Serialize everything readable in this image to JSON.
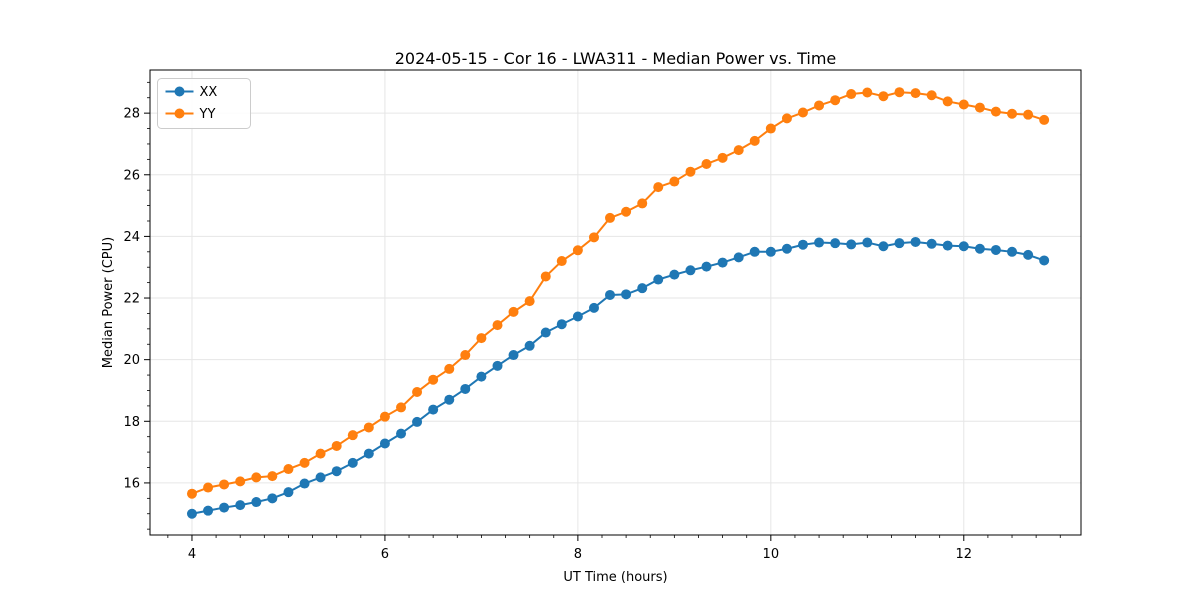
{
  "chart_data": {
    "type": "line",
    "title": "2024-05-15 - Cor 16 - LWA311 - Median Power vs. Time",
    "xlabel": "UT Time (hours)",
    "ylabel": "Median Power (CPU)",
    "grid": true,
    "legend": {
      "position": "upper left",
      "entries": [
        "XX",
        "YY"
      ]
    },
    "xlim": [
      3.565,
      13.215
    ],
    "ylim": [
      14.31,
      29.4
    ],
    "xticks": [
      4,
      6,
      8,
      10,
      12
    ],
    "yticks": [
      16,
      18,
      20,
      22,
      24,
      26,
      28
    ],
    "x_minor_step": 0.25,
    "y_minor_step": 0.5,
    "x": [
      4.0,
      4.167,
      4.333,
      4.5,
      4.667,
      4.833,
      5.0,
      5.167,
      5.333,
      5.5,
      5.667,
      5.833,
      6.0,
      6.167,
      6.333,
      6.5,
      6.667,
      6.833,
      7.0,
      7.167,
      7.333,
      7.5,
      7.667,
      7.833,
      8.0,
      8.167,
      8.333,
      8.5,
      8.667,
      8.833,
      9.0,
      9.167,
      9.333,
      9.5,
      9.667,
      9.833,
      10.0,
      10.167,
      10.333,
      10.5,
      10.667,
      10.833,
      11.0,
      11.167,
      11.333,
      11.5,
      11.667,
      11.833,
      12.0,
      12.167,
      12.333,
      12.5,
      12.667,
      12.833
    ],
    "series": [
      {
        "name": "XX",
        "color": "#1f77b4",
        "values": [
          15.0,
          15.1,
          15.2,
          15.28,
          15.38,
          15.5,
          15.7,
          15.98,
          16.18,
          16.38,
          16.65,
          16.95,
          17.28,
          17.6,
          17.98,
          18.38,
          18.7,
          19.05,
          19.45,
          19.8,
          20.15,
          20.45,
          20.88,
          21.15,
          21.4,
          21.68,
          22.1,
          22.12,
          22.32,
          22.6,
          22.76,
          22.9,
          23.02,
          23.15,
          23.32,
          23.5,
          23.5,
          23.6,
          23.73,
          23.8,
          23.78,
          23.74,
          23.8,
          23.68,
          23.78,
          23.82,
          23.76,
          23.7,
          23.68,
          23.6,
          23.56,
          23.5,
          23.4,
          23.22
        ]
      },
      {
        "name": "YY",
        "color": "#ff7f0e",
        "values": [
          15.65,
          15.85,
          15.95,
          16.05,
          16.18,
          16.22,
          16.45,
          16.65,
          16.95,
          17.2,
          17.55,
          17.8,
          18.15,
          18.45,
          18.95,
          19.35,
          19.7,
          20.15,
          20.7,
          21.12,
          21.55,
          21.9,
          22.7,
          23.2,
          23.55,
          23.97,
          24.6,
          24.8,
          25.07,
          25.6,
          25.78,
          26.1,
          26.35,
          26.55,
          26.8,
          27.1,
          27.5,
          27.83,
          28.02,
          28.25,
          28.42,
          28.62,
          28.67,
          28.55,
          28.68,
          28.65,
          28.58,
          28.38,
          28.28,
          28.18,
          28.05,
          27.98,
          27.95,
          27.78
        ]
      }
    ]
  },
  "colors": {
    "grid": "#e6e6e6",
    "axis": "#000000",
    "legend_border": "#cccccc",
    "legend_fill": "#ffffff"
  }
}
